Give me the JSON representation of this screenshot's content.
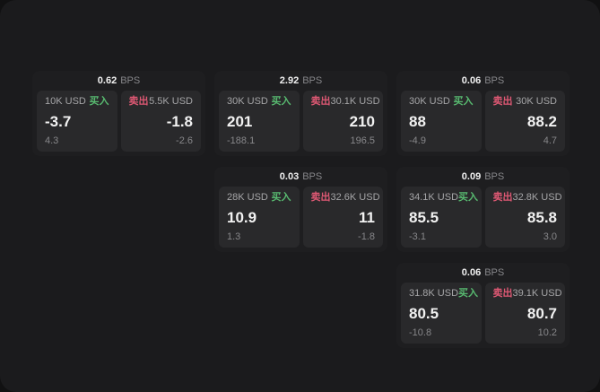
{
  "labels": {
    "bps_unit": "BPS",
    "buy": "买入",
    "sell": "卖出"
  },
  "colors": {
    "page_bg": "#111112",
    "app_bg": "#1b1b1d",
    "card_bg": "#1e1e20",
    "panel_bg": "#29292b",
    "buy_green": "#58ba70",
    "sell_red": "#dd5873"
  },
  "cards": [
    {
      "row": 1,
      "col": 1,
      "bps": "0.62",
      "buy": {
        "amount": "10K USD",
        "value": "-3.7",
        "sub": "4.3"
      },
      "sell": {
        "amount": "5.5K USD",
        "value": "-1.8",
        "sub": "-2.6"
      }
    },
    {
      "row": 1,
      "col": 2,
      "bps": "2.92",
      "buy": {
        "amount": "30K USD",
        "value": "201",
        "sub": "-188.1"
      },
      "sell": {
        "amount": "30.1K USD",
        "value": "210",
        "sub": "196.5"
      }
    },
    {
      "row": 1,
      "col": 3,
      "bps": "0.06",
      "buy": {
        "amount": "30K USD",
        "value": "88",
        "sub": "-4.9"
      },
      "sell": {
        "amount": "30K USD",
        "value": "88.2",
        "sub": "4.7"
      }
    },
    {
      "row": 2,
      "col": 2,
      "bps": "0.03",
      "buy": {
        "amount": "28K USD",
        "value": "10.9",
        "sub": "1.3"
      },
      "sell": {
        "amount": "32.6K USD",
        "value": "11",
        "sub": "-1.8"
      }
    },
    {
      "row": 2,
      "col": 3,
      "bps": "0.09",
      "buy": {
        "amount": "34.1K USD",
        "value": "85.5",
        "sub": "-3.1"
      },
      "sell": {
        "amount": "32.8K USD",
        "value": "85.8",
        "sub": "3.0"
      }
    },
    {
      "row": 3,
      "col": 3,
      "bps": "0.06",
      "buy": {
        "amount": "31.8K USD",
        "value": "80.5",
        "sub": "-10.8"
      },
      "sell": {
        "amount": "39.1K USD",
        "value": "80.7",
        "sub": "10.2"
      }
    }
  ]
}
